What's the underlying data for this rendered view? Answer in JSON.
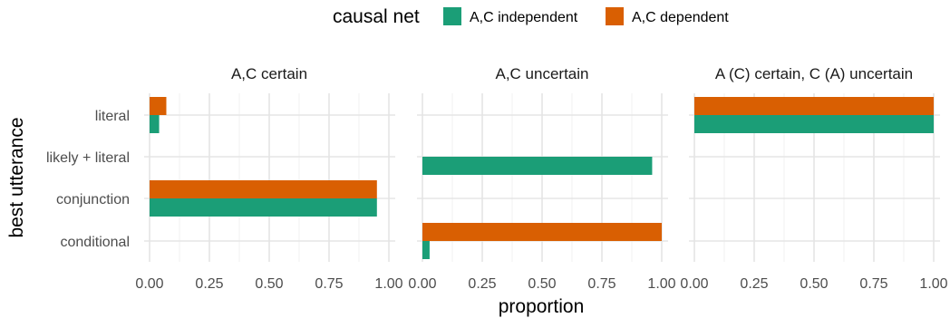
{
  "chart_data": {
    "type": "bar",
    "orientation": "horizontal",
    "legend": {
      "title": "causal net",
      "position": "top",
      "entries": [
        {
          "label": "A,C independent",
          "color": "#1b9e77"
        },
        {
          "label": "A,C dependent",
          "color": "#d95f02"
        }
      ]
    },
    "xlabel": "proportion",
    "ylabel": "best utterance",
    "categories": [
      "literal",
      "likely + literal",
      "conjunction",
      "conditional"
    ],
    "xlim": [
      0,
      1
    ],
    "xticks": [
      "0.00",
      "0.25",
      "0.50",
      "0.75",
      "1.00"
    ],
    "grid": true,
    "facets": [
      {
        "title": "A,C certain",
        "series": [
          {
            "name": "A,C independent",
            "values": [
              0.04,
              0,
              0.95,
              0
            ]
          },
          {
            "name": "A,C dependent",
            "values": [
              0.07,
              0,
              0.95,
              0
            ]
          }
        ]
      },
      {
        "title": "A,C uncertain",
        "series": [
          {
            "name": "A,C independent",
            "values": [
              0,
              0.96,
              0,
              0.03
            ]
          },
          {
            "name": "A,C dependent",
            "values": [
              0,
              0,
              0,
              1.0
            ]
          }
        ]
      },
      {
        "title": "A (C) certain, C (A) uncertain",
        "series": [
          {
            "name": "A,C independent",
            "values": [
              1.0,
              0,
              0,
              0
            ]
          },
          {
            "name": "A,C dependent",
            "values": [
              1.0,
              0,
              0,
              0
            ]
          }
        ]
      }
    ]
  }
}
